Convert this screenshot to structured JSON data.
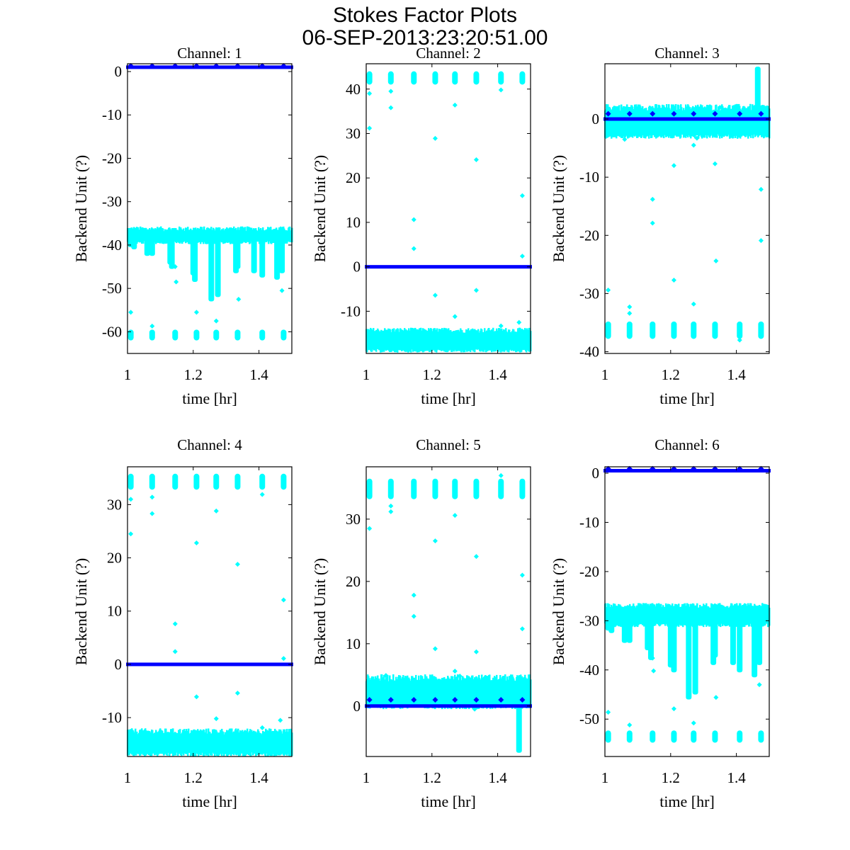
{
  "figure": {
    "title_line1": "Stokes Factor Plots",
    "title_line2": "06-SEP-2013:23:20:51.00"
  },
  "colors": {
    "raw_series": "#00ffff",
    "mean_series": "#0000ff",
    "axes": "#000000",
    "background": "#ffffff"
  },
  "chart_data": [
    {
      "type": "scatter",
      "title": "Channel: 1",
      "xlabel": "time [hr]",
      "ylabel": "Backend Unit (?)",
      "xlim": [
        1,
        1.5
      ],
      "ylim": [
        -65,
        1.8
      ],
      "xticks": [
        "1",
        "1.2",
        "1.4"
      ],
      "xtick_values": [
        1,
        1.2,
        1.4
      ],
      "yticks": [
        "-60",
        "-50",
        "-40",
        "-30",
        "-20",
        "-10",
        "0"
      ],
      "ytick_values": [
        -60,
        -50,
        -40,
        -30,
        -20,
        -10,
        0
      ],
      "series": [
        {
          "name": "raw",
          "color": "#00ffff",
          "band": [
            -39,
            -36.5
          ],
          "dips": [
            [
              1.01,
              -40.5
            ],
            [
              1.02,
              -41
            ],
            [
              1.06,
              -42.5
            ],
            [
              1.075,
              -42.5
            ],
            [
              1.13,
              -44.5
            ],
            [
              1.135,
              -45.5
            ],
            [
              1.2,
              -47
            ],
            [
              1.205,
              -48.5
            ],
            [
              1.255,
              -53
            ],
            [
              1.275,
              -52
            ],
            [
              1.33,
              -46.5
            ],
            [
              1.335,
              -45.5
            ],
            [
              1.385,
              -46.5
            ],
            [
              1.41,
              -47.5
            ],
            [
              1.455,
              -48
            ],
            [
              1.47,
              -46.5
            ]
          ],
          "clusters": {
            "times": [
              1.01,
              1.075,
              1.145,
              1.21,
              1.27,
              1.335,
              1.41,
              1.475
            ],
            "range": [
              -62,
              -59.5
            ]
          },
          "outliers": [
            [
              1.01,
              -55.5
            ],
            [
              1.075,
              -58.7
            ],
            [
              1.145,
              -45
            ],
            [
              1.148,
              -48.5
            ],
            [
              1.21,
              -55.5
            ],
            [
              1.27,
              -57.5
            ],
            [
              1.338,
              -52.5
            ],
            [
              1.465,
              -45
            ],
            [
              1.47,
              -50.5
            ]
          ]
        },
        {
          "name": "mean",
          "color": "#0000ff",
          "level": 1.0,
          "markers": [
            [
              1.01,
              1.3
            ],
            [
              1.075,
              1.3
            ],
            [
              1.145,
              1.3
            ],
            [
              1.21,
              1.3
            ],
            [
              1.27,
              1.3
            ],
            [
              1.335,
              1.3
            ],
            [
              1.41,
              1.3
            ],
            [
              1.475,
              1.3
            ]
          ]
        }
      ]
    },
    {
      "type": "scatter",
      "title": "Channel: 2",
      "xlabel": "time [hr]",
      "ylabel": "Backend Unit (?)",
      "xlim": [
        1,
        1.5
      ],
      "ylim": [
        -19.5,
        45.7
      ],
      "xticks": [
        "1",
        "1.2",
        "1.4"
      ],
      "xtick_values": [
        1,
        1.2,
        1.4
      ],
      "yticks": [
        "-10",
        "0",
        "10",
        "20",
        "30",
        "40"
      ],
      "ytick_values": [
        -10,
        0,
        10,
        20,
        30,
        40
      ],
      "series": [
        {
          "name": "raw",
          "color": "#00ffff",
          "band": [
            -18.5,
            -14.5
          ],
          "dips": [],
          "clusters": {
            "times": [
              1.01,
              1.075,
              1.145,
              1.21,
              1.27,
              1.335,
              1.41,
              1.475
            ],
            "range": [
              41,
              44
            ]
          },
          "outliers": [
            [
              1.01,
              39
            ],
            [
              1.075,
              39.5
            ],
            [
              1.01,
              31.2
            ],
            [
              1.075,
              35.8
            ],
            [
              1.145,
              10.6
            ],
            [
              1.145,
              4.1
            ],
            [
              1.21,
              28.9
            ],
            [
              1.27,
              36.4
            ],
            [
              1.335,
              24.1
            ],
            [
              1.41,
              39.8
            ],
            [
              1.475,
              16
            ],
            [
              1.475,
              2.4
            ],
            [
              1.21,
              -6.4
            ],
            [
              1.27,
              -11.2
            ],
            [
              1.335,
              -5.3
            ],
            [
              1.41,
              -13.3
            ],
            [
              1.465,
              -12.5
            ]
          ]
        },
        {
          "name": "mean",
          "color": "#0000ff",
          "level": 0.0,
          "markers": []
        }
      ]
    },
    {
      "type": "scatter",
      "title": "Channel: 3",
      "xlabel": "time [hr]",
      "ylabel": "Backend Unit (?)",
      "xlim": [
        1,
        1.5
      ],
      "ylim": [
        -40.3,
        9.5
      ],
      "xticks": [
        "1",
        "1.2",
        "1.4"
      ],
      "xtick_values": [
        1,
        1.2,
        1.4
      ],
      "yticks": [
        "-40",
        "-30",
        "-20",
        "-10",
        "0"
      ],
      "ytick_values": [
        -40,
        -30,
        -20,
        -10,
        0
      ],
      "series": [
        {
          "name": "raw",
          "color": "#00ffff",
          "band": [
            -2.6,
            1.8
          ],
          "dips": [
            [
              1.465,
              9
            ]
          ],
          "clusters": {
            "times": [
              1.01,
              1.075,
              1.145,
              1.21,
              1.27,
              1.335,
              1.41,
              1.475
            ],
            "range": [
              -37.8,
              -34.8
            ]
          },
          "outliers": [
            [
              1.01,
              -29.4
            ],
            [
              1.075,
              -32.3
            ],
            [
              1.075,
              -33.4
            ],
            [
              1.145,
              -13.8
            ],
            [
              1.145,
              -17.9
            ],
            [
              1.21,
              -8
            ],
            [
              1.21,
              -27.7
            ],
            [
              1.27,
              -4.5
            ],
            [
              1.28,
              -3.3
            ],
            [
              1.27,
              -31.8
            ],
            [
              1.335,
              -7.7
            ],
            [
              1.338,
              -24.4
            ],
            [
              1.41,
              -38
            ],
            [
              1.475,
              -12.1
            ],
            [
              1.475,
              -20.9
            ],
            [
              1.06,
              -3.5
            ],
            [
              1.35,
              2
            ]
          ]
        },
        {
          "name": "mean",
          "color": "#0000ff",
          "level": 0.0,
          "markers": [
            [
              1.01,
              0.9
            ],
            [
              1.075,
              0.9
            ],
            [
              1.145,
              0.9
            ],
            [
              1.21,
              0.9
            ],
            [
              1.27,
              0.9
            ],
            [
              1.335,
              0.9
            ],
            [
              1.41,
              0.9
            ],
            [
              1.475,
              0.9
            ]
          ]
        }
      ]
    },
    {
      "type": "scatter",
      "title": "Channel: 4",
      "xlabel": "time [hr]",
      "ylabel": "Backend Unit (?)",
      "xlim": [
        1,
        1.5
      ],
      "ylim": [
        -17.3,
        37.1
      ],
      "xticks": [
        "1",
        "1.2",
        "1.4"
      ],
      "xtick_values": [
        1,
        1.2,
        1.4
      ],
      "yticks": [
        "-10",
        "0",
        "10",
        "20",
        "30"
      ],
      "ytick_values": [
        -10,
        0,
        10,
        20,
        30
      ],
      "series": [
        {
          "name": "raw",
          "color": "#00ffff",
          "band": [
            -16.5,
            -12.8
          ],
          "dips": [],
          "clusters": {
            "times": [
              1.01,
              1.075,
              1.145,
              1.21,
              1.27,
              1.335,
              1.41,
              1.475
            ],
            "range": [
              32.8,
              35.8
            ]
          },
          "outliers": [
            [
              1.01,
              31
            ],
            [
              1.075,
              31.4
            ],
            [
              1.01,
              24.5
            ],
            [
              1.075,
              28.3
            ],
            [
              1.145,
              7.6
            ],
            [
              1.145,
              2.4
            ],
            [
              1.21,
              22.8
            ],
            [
              1.27,
              28.8
            ],
            [
              1.335,
              18.8
            ],
            [
              1.41,
              31.9
            ],
            [
              1.475,
              12.1
            ],
            [
              1.475,
              1.1
            ],
            [
              1.21,
              -6.1
            ],
            [
              1.27,
              -10.2
            ],
            [
              1.335,
              -5.4
            ],
            [
              1.41,
              -11.9
            ],
            [
              1.465,
              -10.5
            ]
          ]
        },
        {
          "name": "mean",
          "color": "#0000ff",
          "level": 0.0,
          "markers": []
        }
      ]
    },
    {
      "type": "scatter",
      "title": "Channel: 5",
      "xlabel": "time [hr]",
      "ylabel": "Backend Unit (?)",
      "xlim": [
        1,
        1.5
      ],
      "ylim": [
        -8.1,
        38.4
      ],
      "xticks": [
        "1",
        "1.2",
        "1.4"
      ],
      "xtick_values": [
        1,
        1.2,
        1.4
      ],
      "yticks": [
        "0",
        "10",
        "20",
        "30"
      ],
      "ytick_values": [
        0,
        10,
        20,
        30
      ],
      "series": [
        {
          "name": "raw",
          "color": "#00ffff",
          "band": [
            0.3,
            4.3
          ],
          "dips": [
            [
              1.465,
              -7.5
            ]
          ],
          "clusters": {
            "times": [
              1.01,
              1.075,
              1.145,
              1.21,
              1.27,
              1.335,
              1.41,
              1.475
            ],
            "range": [
              33.2,
              36.5
            ]
          },
          "outliers": [
            [
              1.01,
              28.5
            ],
            [
              1.075,
              31.2
            ],
            [
              1.075,
              32.1
            ],
            [
              1.145,
              17.8
            ],
            [
              1.145,
              14.4
            ],
            [
              1.21,
              26.5
            ],
            [
              1.21,
              9.2
            ],
            [
              1.27,
              30.6
            ],
            [
              1.27,
              5.6
            ],
            [
              1.335,
              24
            ],
            [
              1.335,
              8.7
            ],
            [
              1.41,
              37
            ],
            [
              1.475,
              21
            ],
            [
              1.475,
              12.4
            ],
            [
              1.06,
              4.9
            ],
            [
              1.285,
              4.8
            ],
            [
              1.33,
              -0.5
            ]
          ]
        },
        {
          "name": "mean",
          "color": "#0000ff",
          "level": 0.0,
          "markers": [
            [
              1.01,
              1
            ],
            [
              1.075,
              1
            ],
            [
              1.145,
              1
            ],
            [
              1.21,
              1
            ],
            [
              1.27,
              1
            ],
            [
              1.335,
              1
            ],
            [
              1.41,
              1
            ],
            [
              1.475,
              1
            ]
          ]
        }
      ]
    },
    {
      "type": "scatter",
      "title": "Channel: 6",
      "xlabel": "time [hr]",
      "ylabel": "Backend Unit (?)",
      "xlim": [
        1,
        1.5
      ],
      "ylim": [
        -57.6,
        1.3
      ],
      "xticks": [
        "1",
        "1.2",
        "1.4"
      ],
      "xtick_values": [
        1,
        1.2,
        1.4
      ],
      "yticks": [
        "-50",
        "-40",
        "-30",
        "-20",
        "-10",
        "0"
      ],
      "ytick_values": [
        -50,
        -40,
        -30,
        -20,
        -10,
        0
      ],
      "series": [
        {
          "name": "raw",
          "color": "#00ffff",
          "band": [
            -30.5,
            -27.2
          ],
          "dips": [
            [
              1.01,
              -32
            ],
            [
              1.02,
              -32.5
            ],
            [
              1.06,
              -34.5
            ],
            [
              1.075,
              -34.5
            ],
            [
              1.13,
              -36
            ],
            [
              1.14,
              -38
            ],
            [
              1.2,
              -39.5
            ],
            [
              1.21,
              -40.5
            ],
            [
              1.255,
              -46
            ],
            [
              1.275,
              -45
            ],
            [
              1.33,
              -39
            ],
            [
              1.335,
              -37.5
            ],
            [
              1.39,
              -39
            ],
            [
              1.41,
              -40.5
            ],
            [
              1.455,
              -41.5
            ],
            [
              1.47,
              -39
            ]
          ],
          "clusters": {
            "times": [
              1.01,
              1.075,
              1.145,
              1.21,
              1.27,
              1.335,
              1.41,
              1.475
            ],
            "range": [
              -54.8,
              -52.3
            ]
          },
          "outliers": [
            [
              1.01,
              -48.6
            ],
            [
              1.075,
              -51.2
            ],
            [
              1.145,
              -37.6
            ],
            [
              1.148,
              -40.2
            ],
            [
              1.21,
              -47.9
            ],
            [
              1.27,
              -50.8
            ],
            [
              1.338,
              -45.6
            ],
            [
              1.465,
              -37
            ],
            [
              1.47,
              -43
            ]
          ]
        },
        {
          "name": "mean",
          "color": "#0000ff",
          "level": 0.5,
          "markers": [
            [
              1.01,
              0.9
            ],
            [
              1.075,
              0.9
            ],
            [
              1.145,
              0.9
            ],
            [
              1.21,
              0.9
            ],
            [
              1.27,
              0.9
            ],
            [
              1.335,
              0.9
            ],
            [
              1.41,
              0.9
            ],
            [
              1.475,
              0.9
            ]
          ]
        }
      ]
    }
  ]
}
